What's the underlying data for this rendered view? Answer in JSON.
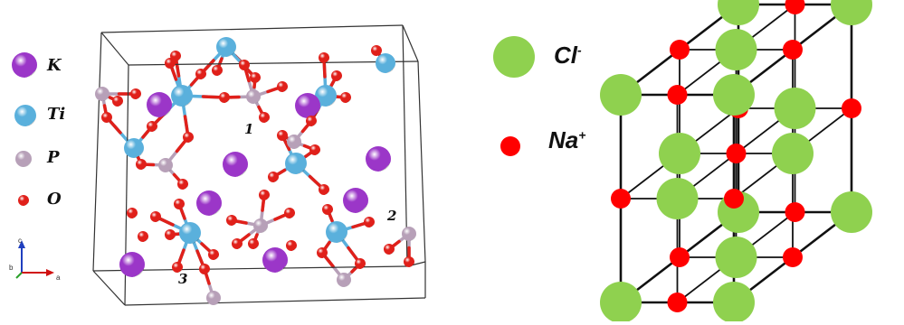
{
  "left_panel": {
    "legend": [
      {
        "symbol": "K",
        "color": "#9b36c8"
      },
      {
        "symbol": "Ti",
        "color": "#5ab0dc"
      },
      {
        "symbol": "P",
        "color": "#b7a0b8"
      },
      {
        "symbol": "O",
        "color": "#e0201a"
      }
    ],
    "site_labels": [
      "1",
      "2",
      "3"
    ],
    "axes": {
      "c": "c",
      "b": "b",
      "a": "a"
    }
  },
  "right_panel": {
    "legend": [
      {
        "symbol": "Cl",
        "charge": "-",
        "color": "#8fd14f"
      },
      {
        "symbol": "Na",
        "charge": "+",
        "color": "#ff0000"
      }
    ]
  }
}
